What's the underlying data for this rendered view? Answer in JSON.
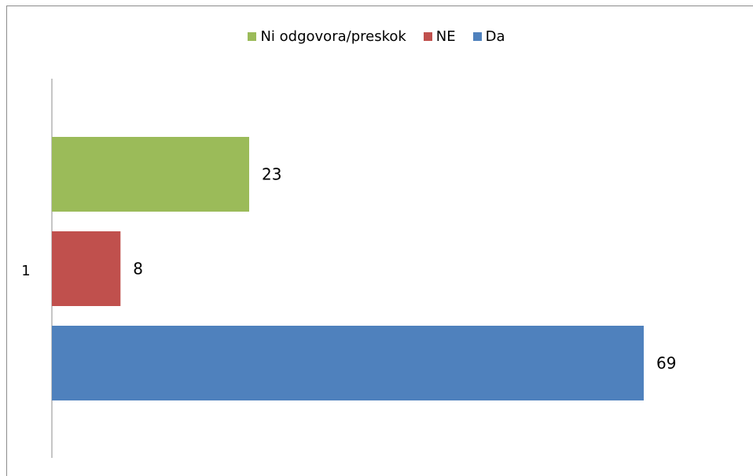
{
  "chart_data": {
    "type": "bar",
    "orientation": "horizontal",
    "categories": [
      "1"
    ],
    "series": [
      {
        "name": "Ni odgovora/preskok",
        "color": "#9bbb59",
        "values": [
          23
        ]
      },
      {
        "name": "NE",
        "color": "#c0504d",
        "values": [
          8
        ]
      },
      {
        "name": "Da",
        "color": "#4f81bd",
        "values": [
          69
        ]
      }
    ],
    "xlim": [
      0,
      80
    ],
    "grid": false,
    "legend_position": "top",
    "data_labels": true,
    "title": "",
    "xlabel": "",
    "ylabel": ""
  }
}
